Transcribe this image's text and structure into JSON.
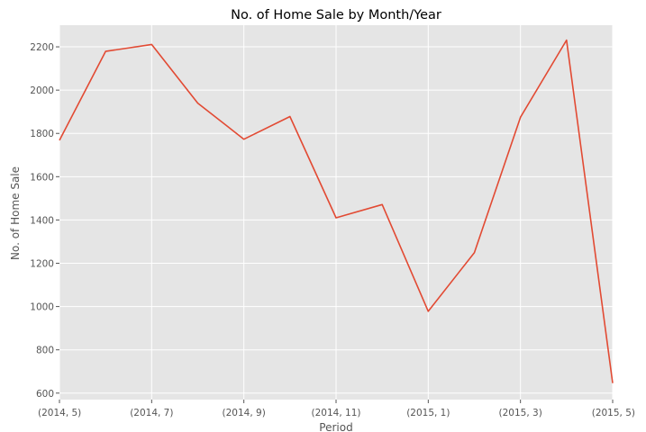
{
  "chart_data": {
    "type": "line",
    "title": "No. of Home Sale by Month/Year",
    "xlabel": "Period",
    "ylabel": "No. of Home Sale",
    "x": [
      "(2014, 5)",
      "(2014, 6)",
      "(2014, 7)",
      "(2014, 8)",
      "(2014, 9)",
      "(2014, 10)",
      "(2014, 11)",
      "(2014, 12)",
      "(2015, 1)",
      "(2015, 2)",
      "(2015, 3)",
      "(2015, 4)",
      "(2015, 5)"
    ],
    "x_tick_labels": [
      "(2014, 5)",
      "(2014, 7)",
      "(2014, 9)",
      "(2014, 11)",
      "(2015, 1)",
      "(2015, 3)",
      "(2015, 5)"
    ],
    "series": [
      {
        "values": [
          1768,
          2179,
          2211,
          1940,
          1773,
          1878,
          1410,
          1471,
          978,
          1249,
          1875,
          2231,
          646
        ]
      }
    ],
    "y_ticks": [
      600,
      800,
      1000,
      1200,
      1400,
      1600,
      1800,
      2000,
      2200
    ],
    "ylim": [
      570,
      2300
    ],
    "grid": true,
    "colors": {
      "background": "#e5e5e5",
      "grid": "#ffffff",
      "line": "#e24a33"
    }
  }
}
